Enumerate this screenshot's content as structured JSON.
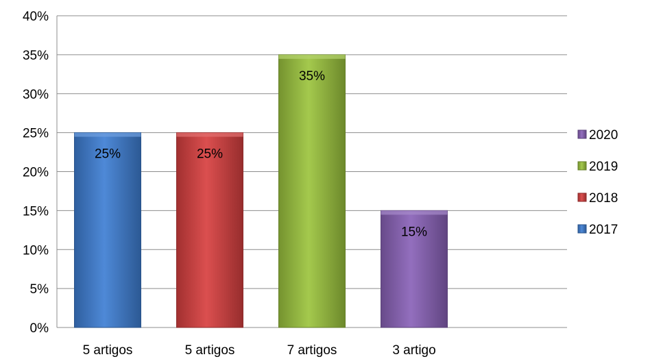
{
  "chart_data": {
    "type": "bar",
    "categories": [
      "5 artigos",
      "5 artigos",
      "7 artigos",
      "3 artigo"
    ],
    "values": [
      25,
      25,
      35,
      15
    ],
    "data_labels": [
      "25%",
      "25%",
      "35%",
      "15%"
    ],
    "bar_series": [
      "2017",
      "2018",
      "2019",
      "2020"
    ],
    "ylim": [
      0,
      40
    ],
    "y_ticks": [
      0,
      5,
      10,
      15,
      20,
      25,
      30,
      35,
      40
    ],
    "y_tick_labels": [
      "0%",
      "5%",
      "10%",
      "15%",
      "20%",
      "25%",
      "30%",
      "35%",
      "40%"
    ],
    "grid": true,
    "legend_position": "right",
    "legend": [
      {
        "name": "2020",
        "color": "#8a63b8"
      },
      {
        "name": "2019",
        "color": "#9cc43e"
      },
      {
        "name": "2018",
        "color": "#d84040"
      },
      {
        "name": "2017",
        "color": "#3f7fd4"
      }
    ],
    "colors": {
      "2017": "#3f7fd4",
      "2018": "#d84040",
      "2019": "#9cc43e",
      "2020": "#8a63b8"
    }
  }
}
